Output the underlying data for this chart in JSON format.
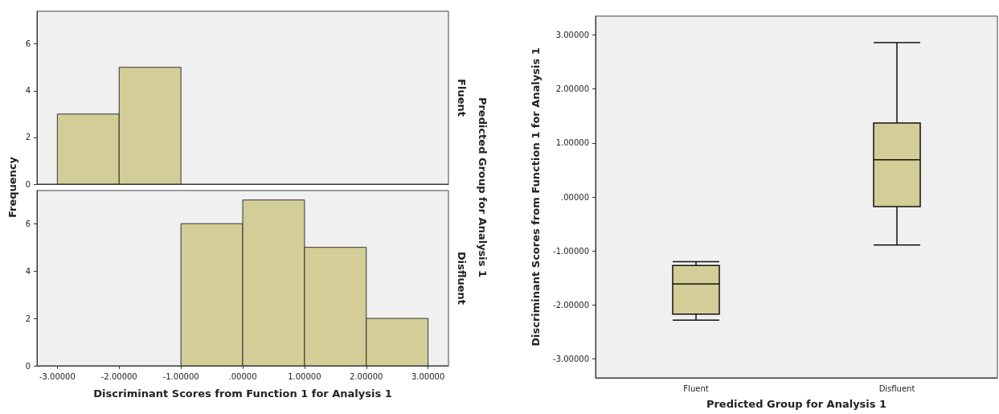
{
  "chart_data": [
    {
      "type": "histogram",
      "y2label": "Fluent",
      "ylabel": "Frequency",
      "annotations": [
        "Predicted Group for Analysis 1"
      ],
      "bins": [
        -3,
        -2,
        -1,
        0,
        1,
        2,
        3
      ],
      "values": [
        3,
        5,
        0,
        0,
        0,
        0
      ],
      "color": "#d3ce97",
      "xlim": [
        -3.33,
        3.33
      ],
      "ylim": [
        0,
        7.4
      ],
      "yticks": [
        0,
        2,
        4,
        6
      ],
      "tick_labels": "y"
    },
    {
      "type": "histogram",
      "y2label": "Disfluent",
      "xlabel": "Discriminant Scores from Function 1 for Analysis 1",
      "bins": [
        -3,
        -2,
        -1,
        0,
        1,
        2,
        3
      ],
      "values": [
        0,
        0,
        6,
        7,
        5,
        2
      ],
      "color": "#d3ce97",
      "xlim": [
        -3.33,
        3.33
      ],
      "xticks": [
        {
          "value": -3,
          "label": "-3.00000"
        },
        {
          "value": -2,
          "label": "-2.00000"
        },
        {
          "value": -1,
          "label": "-1.00000"
        },
        {
          "value": 0,
          "label": ".00000"
        },
        {
          "value": 1,
          "label": "1.00000"
        },
        {
          "value": 2,
          "label": "2.00000"
        },
        {
          "value": 3,
          "label": "3.00000"
        }
      ],
      "ylim": [
        0,
        7.4
      ],
      "yticks": [
        0,
        2,
        4,
        6
      ]
    },
    {
      "type": "box",
      "xlabel": "Predicted Group for Analysis 1",
      "ylabel": "Discriminant Scores from Function 1 for Analysis 1",
      "categories": [
        "Fluent",
        "Disfluent"
      ],
      "color": "#d3ce97",
      "boxes": [
        {
          "low": -2.28,
          "q1": -2.17,
          "median": -1.61,
          "q3": -1.27,
          "high": -1.2
        },
        {
          "low": -0.89,
          "q1": -0.18,
          "median": 0.69,
          "q3": 1.37,
          "high": 2.86
        }
      ],
      "ylim": [
        -3.35,
        3.35
      ],
      "yticks": [
        {
          "value": -3,
          "label": "-3.00000"
        },
        {
          "value": -2,
          "label": "-2.00000"
        },
        {
          "value": -1,
          "label": "-1.00000"
        },
        {
          "value": 0,
          "label": ".00000"
        },
        {
          "value": 1,
          "label": "1.00000"
        },
        {
          "value": 2,
          "label": "2.00000"
        },
        {
          "value": 3,
          "label": "3.00000"
        }
      ]
    }
  ]
}
